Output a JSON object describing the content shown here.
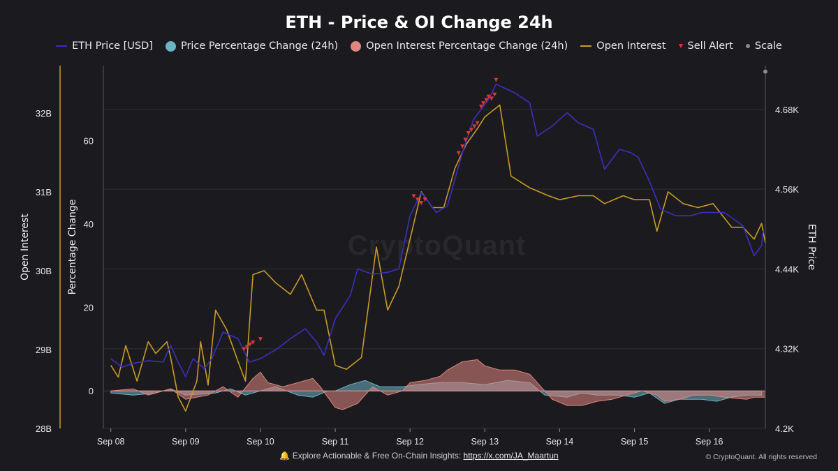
{
  "footer": {
    "text": "Explore Actionable & Free On-Chain Insights:",
    "link": "https://x.com/JA_Maartun",
    "bell": "bell-icon",
    "copyright": "© CryptoQuant. All rights reserved"
  },
  "watermark": "CryptoQuant",
  "colors": {
    "background": "#1b1b1f",
    "price": "#3b2fbe",
    "oi": "#c99a24",
    "price_change": "#6db3c4",
    "oi_change": "#e0857f",
    "sell_alert": "#d9383a",
    "scale": "#8a8a96"
  },
  "chart_data": {
    "type": "line",
    "title": "ETH - Price & OI Change 24h",
    "legend": [
      "ETH Price [USD]",
      "Price Percentage Change (24h)",
      "Open Interest Percentage Change (24h)",
      "Open Interest",
      "Sell Alert",
      "Scale"
    ],
    "legend_position": "top-center",
    "x_ticks": [
      "Sep 08",
      "Sep 09",
      "Sep 10",
      "Sep 11",
      "Sep 12",
      "Sep 13",
      "Sep 14",
      "Sep 15",
      "Sep 16"
    ],
    "x_range": [
      7.9,
      16.75
    ],
    "axes": {
      "open_interest": {
        "label": "Open Interest",
        "ticks": [
          "28B",
          "29B",
          "30B",
          "31B",
          "32B"
        ],
        "range": [
          28.0,
          32.6
        ]
      },
      "percentage_change": {
        "label": "Percentage Change",
        "ticks": [
          "0",
          "20",
          "40",
          "60"
        ],
        "range": [
          -9,
          78
        ]
      },
      "eth_price": {
        "label": "ETH Price",
        "ticks": [
          "4.2K",
          "4.32K",
          "4.44K",
          "4.56K",
          "4.68K"
        ],
        "range": [
          4200,
          4746
        ]
      }
    },
    "grid": "horizontal",
    "series": [
      {
        "name": "ETH Price [USD]",
        "axis": "eth_price",
        "unit": "USD",
        "points": [
          [
            8.0,
            4305
          ],
          [
            8.15,
            4292
          ],
          [
            8.3,
            4298
          ],
          [
            8.5,
            4302
          ],
          [
            8.7,
            4300
          ],
          [
            8.8,
            4325
          ],
          [
            8.9,
            4300
          ],
          [
            9.0,
            4278
          ],
          [
            9.1,
            4305
          ],
          [
            9.25,
            4290
          ],
          [
            9.35,
            4305
          ],
          [
            9.5,
            4345
          ],
          [
            9.7,
            4335
          ],
          [
            9.85,
            4300
          ],
          [
            10.0,
            4305
          ],
          [
            10.2,
            4318
          ],
          [
            10.4,
            4335
          ],
          [
            10.6,
            4350
          ],
          [
            10.75,
            4330
          ],
          [
            10.85,
            4310
          ],
          [
            11.0,
            4365
          ],
          [
            11.2,
            4400
          ],
          [
            11.3,
            4440
          ],
          [
            11.5,
            4432
          ],
          [
            11.7,
            4435
          ],
          [
            11.85,
            4440
          ],
          [
            12.0,
            4520
          ],
          [
            12.15,
            4555
          ],
          [
            12.35,
            4525
          ],
          [
            12.5,
            4535
          ],
          [
            12.7,
            4615
          ],
          [
            12.85,
            4665
          ],
          [
            13.05,
            4695
          ],
          [
            13.15,
            4718
          ],
          [
            13.4,
            4705
          ],
          [
            13.6,
            4690
          ],
          [
            13.7,
            4640
          ],
          [
            13.9,
            4655
          ],
          [
            14.1,
            4675
          ],
          [
            14.25,
            4660
          ],
          [
            14.45,
            4650
          ],
          [
            14.6,
            4590
          ],
          [
            14.8,
            4620
          ],
          [
            14.95,
            4615
          ],
          [
            15.05,
            4608
          ],
          [
            15.2,
            4572
          ],
          [
            15.35,
            4530
          ],
          [
            15.55,
            4520
          ],
          [
            15.75,
            4520
          ],
          [
            15.9,
            4525
          ],
          [
            16.05,
            4525
          ],
          [
            16.2,
            4525
          ],
          [
            16.45,
            4505
          ],
          [
            16.6,
            4460
          ],
          [
            16.7,
            4475
          ],
          [
            16.72,
            4497
          ]
        ]
      },
      {
        "name": "Open Interest",
        "axis": "open_interest",
        "unit": "B",
        "points": [
          [
            8.0,
            28.8
          ],
          [
            8.1,
            28.65
          ],
          [
            8.2,
            29.05
          ],
          [
            8.35,
            28.6
          ],
          [
            8.5,
            29.1
          ],
          [
            8.6,
            28.95
          ],
          [
            8.75,
            29.1
          ],
          [
            8.8,
            28.9
          ],
          [
            8.9,
            28.4
          ],
          [
            9.0,
            28.22
          ],
          [
            9.15,
            28.6
          ],
          [
            9.2,
            29.1
          ],
          [
            9.3,
            28.55
          ],
          [
            9.4,
            29.5
          ],
          [
            9.55,
            29.25
          ],
          [
            9.7,
            28.85
          ],
          [
            9.8,
            28.6
          ],
          [
            9.9,
            29.95
          ],
          [
            10.05,
            30.0
          ],
          [
            10.2,
            29.85
          ],
          [
            10.4,
            29.7
          ],
          [
            10.55,
            29.95
          ],
          [
            10.75,
            29.5
          ],
          [
            10.85,
            29.5
          ],
          [
            11.0,
            28.8
          ],
          [
            11.15,
            28.75
          ],
          [
            11.35,
            28.9
          ],
          [
            11.55,
            30.3
          ],
          [
            11.7,
            29.5
          ],
          [
            11.85,
            29.8
          ],
          [
            12.0,
            30.4
          ],
          [
            12.15,
            31.0
          ],
          [
            12.3,
            30.8
          ],
          [
            12.45,
            30.8
          ],
          [
            12.6,
            31.3
          ],
          [
            12.75,
            31.6
          ],
          [
            12.9,
            31.8
          ],
          [
            13.0,
            31.95
          ],
          [
            13.2,
            32.1
          ],
          [
            13.35,
            31.2
          ],
          [
            13.6,
            31.05
          ],
          [
            13.85,
            30.95
          ],
          [
            14.0,
            30.9
          ],
          [
            14.25,
            30.95
          ],
          [
            14.45,
            30.95
          ],
          [
            14.6,
            30.85
          ],
          [
            14.85,
            30.95
          ],
          [
            15.0,
            30.9
          ],
          [
            15.2,
            30.9
          ],
          [
            15.3,
            30.5
          ],
          [
            15.45,
            31.0
          ],
          [
            15.65,
            30.85
          ],
          [
            15.85,
            30.8
          ],
          [
            16.05,
            30.85
          ],
          [
            16.3,
            30.55
          ],
          [
            16.45,
            30.55
          ],
          [
            16.6,
            30.4
          ],
          [
            16.7,
            30.6
          ],
          [
            16.75,
            30.35
          ]
        ]
      },
      {
        "name": "Price Percentage Change (24h)",
        "axis": "percentage_change",
        "unit": "%",
        "points": [
          [
            8.0,
            -0.5
          ],
          [
            8.3,
            -1
          ],
          [
            8.6,
            -0.5
          ],
          [
            8.8,
            0.5
          ],
          [
            9.0,
            -1
          ],
          [
            9.4,
            -0.5
          ],
          [
            9.6,
            0.5
          ],
          [
            9.8,
            -1
          ],
          [
            10.0,
            0
          ],
          [
            10.2,
            1
          ],
          [
            10.5,
            -1
          ],
          [
            10.7,
            -1.5
          ],
          [
            10.9,
            0
          ],
          [
            11.0,
            0
          ],
          [
            11.2,
            1.5
          ],
          [
            11.4,
            2.5
          ],
          [
            11.6,
            1
          ],
          [
            11.9,
            1
          ],
          [
            12.1,
            1.5
          ],
          [
            12.4,
            2
          ],
          [
            12.7,
            2
          ],
          [
            13.0,
            1.5
          ],
          [
            13.3,
            2.5
          ],
          [
            13.6,
            2
          ],
          [
            13.8,
            -1
          ],
          [
            14.1,
            -1.5
          ],
          [
            14.3,
            -0.5
          ],
          [
            14.5,
            -1
          ],
          [
            14.8,
            -1
          ],
          [
            15.0,
            -1.5
          ],
          [
            15.2,
            -0.5
          ],
          [
            15.4,
            -3
          ],
          [
            15.6,
            -2
          ],
          [
            15.9,
            -2
          ],
          [
            16.1,
            -2.5
          ],
          [
            16.3,
            -1.5
          ],
          [
            16.5,
            -1
          ],
          [
            16.7,
            -1
          ]
        ]
      },
      {
        "name": "Open Interest Percentage Change (24h)",
        "axis": "percentage_change",
        "unit": "%",
        "points": [
          [
            8.0,
            0
          ],
          [
            8.3,
            0.5
          ],
          [
            8.5,
            -1
          ],
          [
            8.8,
            0.5
          ],
          [
            9.0,
            -2
          ],
          [
            9.3,
            -1
          ],
          [
            9.5,
            1
          ],
          [
            9.7,
            -1.5
          ],
          [
            9.9,
            3
          ],
          [
            10.0,
            4.5
          ],
          [
            10.1,
            2
          ],
          [
            10.3,
            1
          ],
          [
            10.5,
            2
          ],
          [
            10.7,
            3
          ],
          [
            10.8,
            1
          ],
          [
            11.0,
            -4
          ],
          [
            11.1,
            -4.5
          ],
          [
            11.3,
            -3
          ],
          [
            11.5,
            1
          ],
          [
            11.7,
            -1
          ],
          [
            11.9,
            0
          ],
          [
            12.0,
            2
          ],
          [
            12.2,
            2.5
          ],
          [
            12.4,
            3.5
          ],
          [
            12.5,
            5
          ],
          [
            12.7,
            7
          ],
          [
            12.9,
            7.5
          ],
          [
            13.0,
            6
          ],
          [
            13.2,
            5
          ],
          [
            13.4,
            5
          ],
          [
            13.6,
            4
          ],
          [
            13.7,
            2
          ],
          [
            13.9,
            -2
          ],
          [
            14.1,
            -3.5
          ],
          [
            14.3,
            -3.5
          ],
          [
            14.5,
            -2.5
          ],
          [
            14.7,
            -2
          ],
          [
            14.9,
            -1
          ],
          [
            15.1,
            0
          ],
          [
            15.3,
            -1
          ],
          [
            15.4,
            -2.5
          ],
          [
            15.6,
            -2
          ],
          [
            15.8,
            -1
          ],
          [
            16.0,
            -1
          ],
          [
            16.2,
            -1.5
          ],
          [
            16.5,
            -2
          ],
          [
            16.6,
            -1.5
          ],
          [
            16.75,
            -1.5
          ]
        ]
      },
      {
        "name": "Sell Alert",
        "axis": "eth_price",
        "unit": "USD",
        "points": [
          [
            9.78,
            4315
          ],
          [
            9.82,
            4318
          ],
          [
            9.86,
            4322
          ],
          [
            9.9,
            4325
          ],
          [
            10.0,
            4330
          ],
          [
            12.05,
            4545
          ],
          [
            12.1,
            4540
          ],
          [
            12.15,
            4535
          ],
          [
            12.2,
            4540
          ],
          [
            12.65,
            4610
          ],
          [
            12.7,
            4620
          ],
          [
            12.74,
            4630
          ],
          [
            12.78,
            4640
          ],
          [
            12.82,
            4645
          ],
          [
            12.86,
            4650
          ],
          [
            12.9,
            4655
          ],
          [
            12.95,
            4680
          ],
          [
            12.98,
            4685
          ],
          [
            13.02,
            4690
          ],
          [
            13.05,
            4695
          ],
          [
            13.09,
            4692
          ],
          [
            13.13,
            4698
          ],
          [
            13.15,
            4720
          ]
        ]
      },
      {
        "name": "Scale",
        "axis": "eth_price",
        "unit": "USD",
        "points": [
          [
            16.75,
            4737
          ]
        ]
      }
    ]
  }
}
